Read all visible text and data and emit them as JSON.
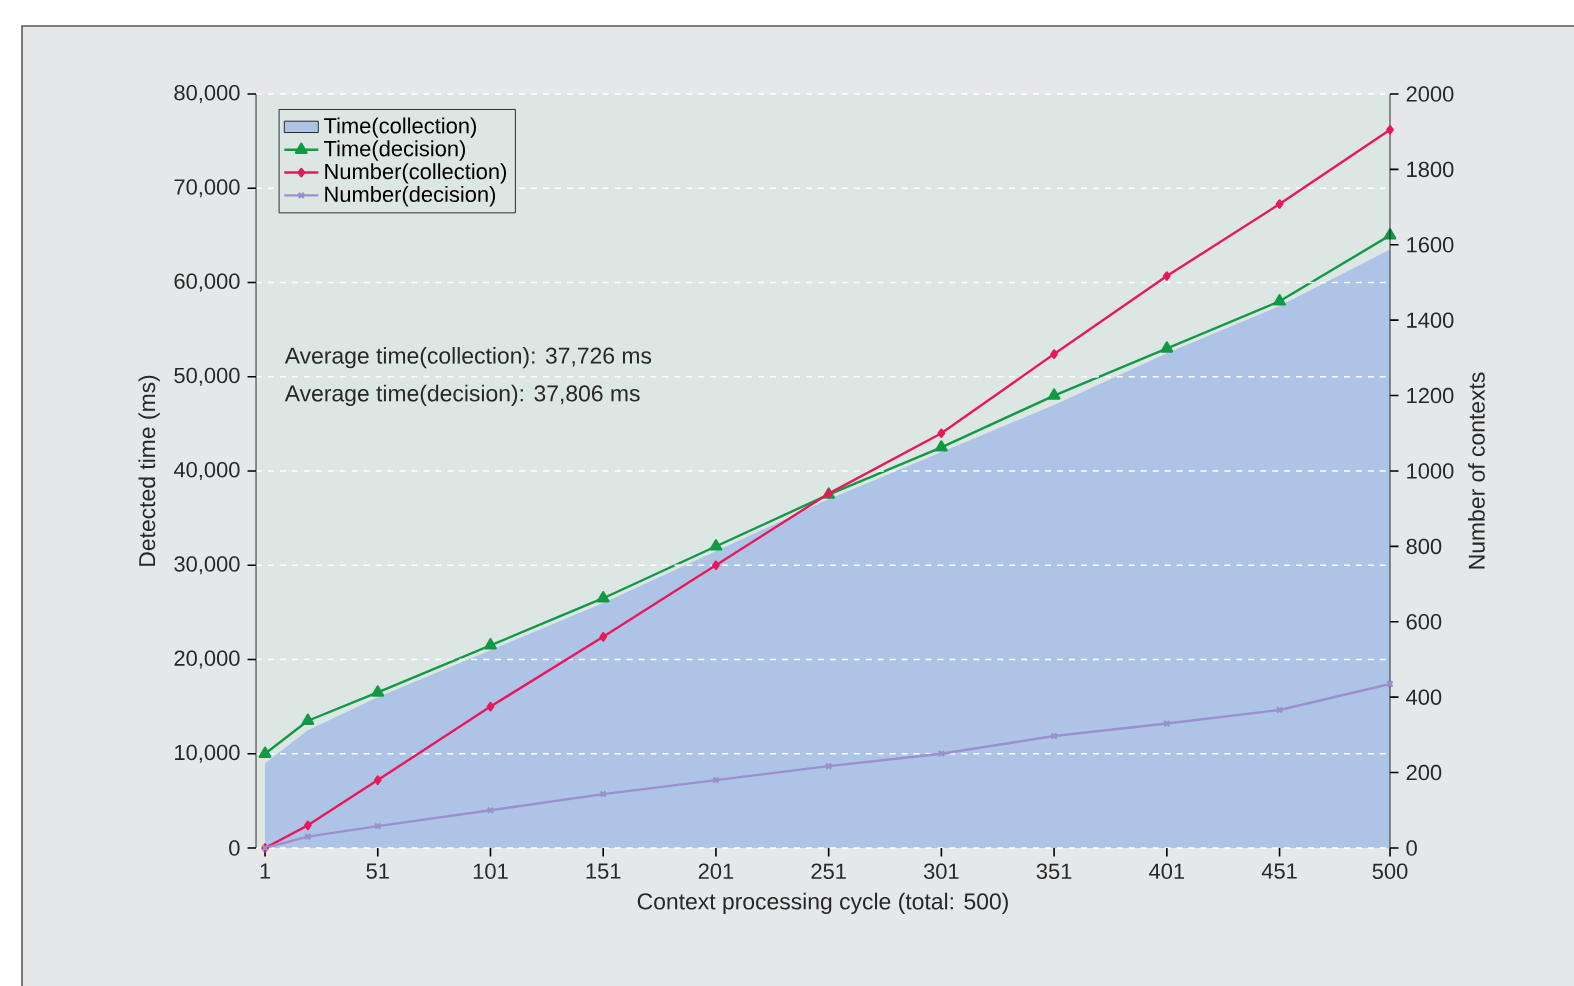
{
  "chart_data": {
    "type": "line",
    "xlabel": "Context processing cycle (total: 500)",
    "ylabel": "Detected time (ms)",
    "y2label": "Number of contexts",
    "x": [
      1,
      20,
      51,
      101,
      151,
      201,
      251,
      301,
      351,
      401,
      451,
      500
    ],
    "series": [
      {
        "name": "Time(collection)",
        "type": "area",
        "color": "#aec4e6",
        "values": [
          9000,
          12500,
          16000,
          21000,
          26000,
          31500,
          37000,
          42000,
          47000,
          52500,
          57500,
          63500
        ]
      },
      {
        "name": "Time(decision)",
        "color": "#119944",
        "marker": "triangle",
        "values": [
          10000,
          13500,
          16500,
          21500,
          26500,
          32000,
          37500,
          42500,
          48000,
          53000,
          58000,
          65000
        ]
      },
      {
        "name": "Number(collection)",
        "axis": "y2",
        "color": "#e8185a",
        "marker": "diamond",
        "values": [
          0,
          60,
          180,
          375,
          560,
          750,
          940,
          1100,
          1310,
          1517,
          1708,
          1905
        ]
      },
      {
        "name": "Number(decision)",
        "axis": "y2",
        "color": "#9b8fd0",
        "marker": "cross",
        "values": [
          0,
          30,
          58,
          100,
          143,
          180,
          217,
          250,
          297,
          330,
          366,
          435
        ]
      }
    ],
    "xlim": [
      -3,
      500
    ],
    "xticks": [
      1,
      51,
      101,
      151,
      201,
      251,
      301,
      351,
      401,
      451,
      500
    ],
    "ylim": [
      0,
      80000
    ],
    "yticks": [
      0,
      {
        "value": 10000,
        "label": "10,000"
      },
      {
        "value": 20000,
        "label": "20,000"
      },
      {
        "value": 30000,
        "label": "30,000"
      },
      {
        "value": 40000,
        "label": "40,000"
      },
      {
        "value": 50000,
        "label": "50,000"
      },
      {
        "value": 60000,
        "label": "60,000"
      },
      {
        "value": 70000,
        "label": "70,000"
      },
      {
        "value": 80000,
        "label": "80,000"
      }
    ],
    "y2lim": [
      0,
      2000
    ],
    "y2ticks": [
      0,
      200,
      400,
      600,
      800,
      1000,
      1200,
      1400,
      1600,
      1800,
      2000
    ],
    "grid": "y",
    "legend": "top left",
    "line_style": "solid",
    "annotations": [
      "Average time(collection): 37,726 ms",
      "Average time(decision): 37,806 ms"
    ]
  }
}
